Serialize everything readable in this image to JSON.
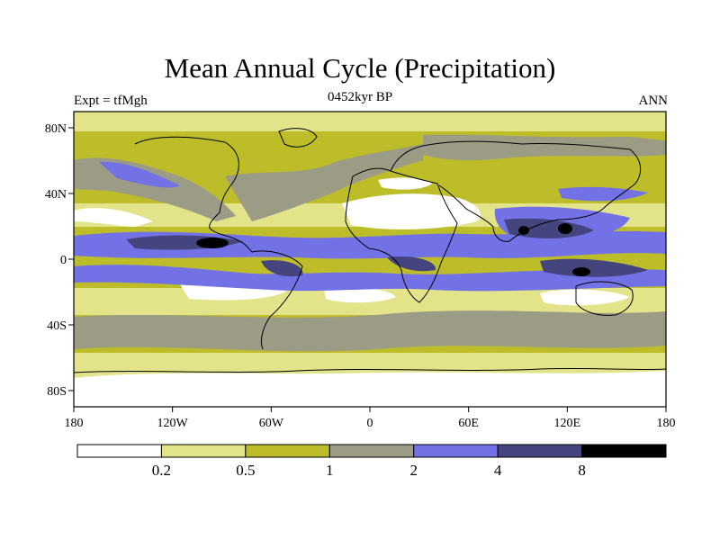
{
  "header": {
    "title": "Mean Annual Cycle (Precipitation)",
    "left_label": "Expt = tfMgh",
    "center_label": "0452kyr BP",
    "right_label": "ANN"
  },
  "axes": {
    "y_ticks": [
      "80N",
      "40N",
      "0",
      "40S",
      "80S"
    ],
    "x_ticks": [
      "180",
      "120W",
      "60W",
      "0",
      "60E",
      "120E",
      "180"
    ]
  },
  "colorbar": {
    "colors": [
      "#ffffff",
      "#e3e38a",
      "#bdbd2a",
      "#9b9b86",
      "#7272e6",
      "#44447e",
      "#000000"
    ],
    "labels": [
      "0.2",
      "0.5",
      "1",
      "2",
      "4",
      "8"
    ]
  },
  "map_colors": {
    "ocean_base": "#bdbd2a",
    "pale": "#e3e38a",
    "dry": "#ffffff",
    "medium": "#9b9b86",
    "wet": "#7272e6",
    "very_wet": "#44447e",
    "extreme": "#000000",
    "coastline": "#000000"
  }
}
